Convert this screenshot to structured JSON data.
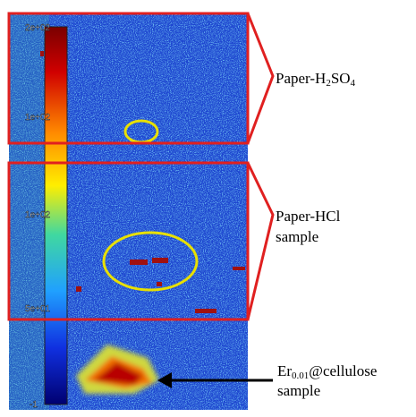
{
  "colorbar": {
    "labels": [
      "2e+02",
      "1e+02",
      "1e+02",
      "5e+01",
      "-1"
    ]
  },
  "annotations": [
    {
      "lines": [
        [
          "Paper-H",
          "2",
          "SO",
          "4"
        ]
      ]
    },
    {
      "lines": [
        [
          "Paper-HCl"
        ],
        [
          "sample"
        ]
      ]
    },
    {
      "lines": [
        [
          "Er",
          "0.01",
          "@cellulose"
        ],
        [
          "sample"
        ]
      ]
    }
  ]
}
